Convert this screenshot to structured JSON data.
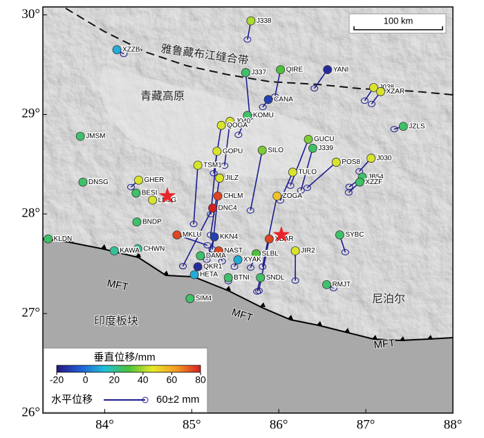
{
  "map": {
    "xlim": [
      83.29,
      88
    ],
    "ylim": [
      26,
      30.08
    ],
    "xticks": [
      {
        "value": 84,
        "label": "84°"
      },
      {
        "value": 85,
        "label": "85°"
      },
      {
        "value": 86,
        "label": "86°"
      },
      {
        "value": 87,
        "label": "87°"
      },
      {
        "value": 88,
        "label": "88°"
      }
    ],
    "yticks": [
      {
        "value": 26,
        "label": "26°"
      },
      {
        "value": 27,
        "label": "27°"
      },
      {
        "value": 28,
        "label": "28°"
      },
      {
        "value": 29,
        "label": "29°"
      },
      {
        "value": 30,
        "label": "30°"
      }
    ],
    "places": {
      "suture": "雅鲁藏布江缝合带",
      "plateau": "青藏高原",
      "nepal": "尼泊尔",
      "india": "印度板块"
    },
    "fault_labels": [
      "MFT",
      "MFT",
      "MFT"
    ],
    "scale_bar": "100 km",
    "colorbar": {
      "title": "垂直位移/mm",
      "vrange": [
        -20,
        80
      ],
      "ticks": [
        -20,
        0,
        20,
        40,
        60,
        80
      ],
      "colormap": [
        "#2a1580",
        "#1f5fd6",
        "#22c0d8",
        "#4cc23a",
        "#e8e82a",
        "#f59a23",
        "#d42020"
      ]
    },
    "vector_legend": {
      "title": "水平位移",
      "label": "60±2 mm",
      "value": 60,
      "color": "#1a1a8c"
    },
    "earthquakes": [
      {
        "lon": 84.72,
        "lat": 28.18
      },
      {
        "lon": 86.03,
        "lat": 27.79
      }
    ],
    "stations": [
      {
        "name": "J338",
        "lon": 85.68,
        "lat": 29.94,
        "vertical": 40,
        "ve": -5,
        "vn": -27
      },
      {
        "name": "XZZB",
        "lon": 84.14,
        "lat": 29.65,
        "vertical": 10,
        "ve": 10,
        "vn": -6
      },
      {
        "name": "QIRE",
        "lon": 86.02,
        "lat": 29.45,
        "vertical": 30,
        "ve": -8,
        "vn": -39
      },
      {
        "name": "YANI",
        "lon": 86.56,
        "lat": 29.45,
        "vertical": -15,
        "ve": -19,
        "vn": -27
      },
      {
        "name": "J337",
        "lon": 85.62,
        "lat": 29.42,
        "vertical": 25,
        "ve": 6,
        "vn": -64
      },
      {
        "name": "J038",
        "lon": 87.09,
        "lat": 29.27,
        "vertical": 45,
        "ve": -13,
        "vn": -19
      },
      {
        "name": "XZAR",
        "lon": 87.17,
        "lat": 29.23,
        "vertical": 45,
        "ve": -13,
        "vn": -18
      },
      {
        "name": "CANA",
        "lon": 85.88,
        "lat": 29.15,
        "vertical": -10,
        "ve": -8,
        "vn": -11
      },
      {
        "name": "KOMU",
        "lon": 85.64,
        "lat": 28.99,
        "vertical": 25,
        "ve": -13,
        "vn": -28
      },
      {
        "name": "J040",
        "lon": 85.44,
        "lat": 28.93,
        "vertical": 45,
        "ve": -8,
        "vn": -64
      },
      {
        "name": "QOGA",
        "lon": 85.34,
        "lat": 28.89,
        "vertical": 45,
        "ve": -11,
        "vn": -69
      },
      {
        "name": "JZLS",
        "lon": 87.43,
        "lat": 28.88,
        "vertical": 25,
        "ve": -13,
        "vn": -4
      },
      {
        "name": "JMSM",
        "lon": 83.72,
        "lat": 28.78,
        "vertical": 25
      },
      {
        "name": "GUCU",
        "lon": 86.34,
        "lat": 28.75,
        "vertical": 35,
        "ve": -26,
        "vn": -67
      },
      {
        "name": "J339",
        "lon": 86.39,
        "lat": 28.66,
        "vertical": 25,
        "ve": -17,
        "vn": -61
      },
      {
        "name": "SILO",
        "lon": 85.81,
        "lat": 28.64,
        "vertical": 35,
        "ve": -17,
        "vn": -87
      },
      {
        "name": "GOPU",
        "lon": 85.29,
        "lat": 28.63,
        "vertical": 45,
        "ve": -9,
        "vn": -91
      },
      {
        "name": "TSM1",
        "lon": 85.07,
        "lat": 28.49,
        "vertical": 45,
        "ve": -6,
        "vn": -85
      },
      {
        "name": "J030",
        "lon": 87.06,
        "lat": 28.56,
        "vertical": 45,
        "ve": -17,
        "vn": -19
      },
      {
        "name": "POS8",
        "lon": 86.66,
        "lat": 28.52,
        "vertical": 45,
        "ve": -42,
        "vn": -37
      },
      {
        "name": "TULO",
        "lon": 86.16,
        "lat": 28.42,
        "vertical": 45,
        "ve": -18,
        "vn": -41
      },
      {
        "name": "JILZ",
        "lon": 85.32,
        "lat": 28.36,
        "vertical": 45,
        "ve": -13,
        "vn": -82
      },
      {
        "name": "JB54",
        "lon": 86.96,
        "lat": 28.37,
        "vertical": 25,
        "ve": -19,
        "vn": -14
      },
      {
        "name": "XZZF",
        "lon": 86.93,
        "lat": 28.32,
        "vertical": 25,
        "ve": -16,
        "vn": -15
      },
      {
        "name": "DNSG",
        "lon": 83.75,
        "lat": 28.32,
        "vertical": 25
      },
      {
        "name": "GHER",
        "lon": 84.39,
        "lat": 28.34,
        "vertical": 45,
        "ve": -11,
        "vn": -10
      },
      {
        "name": "BESI",
        "lon": 84.36,
        "lat": 28.21,
        "vertical": 25
      },
      {
        "name": "CHLM",
        "lon": 85.3,
        "lat": 28.18,
        "vertical": 75,
        "ve": -8,
        "vn": -77
      },
      {
        "name": "ZOGA",
        "lon": 85.98,
        "lat": 28.18,
        "vertical": 55,
        "ve": -21,
        "vn": -102
      },
      {
        "name": "LMJG",
        "lon": 84.55,
        "lat": 28.14,
        "vertical": 45
      },
      {
        "name": "DNC4",
        "lon": 85.24,
        "lat": 28.06,
        "vertical": 80,
        "ve": -43,
        "vn": -84
      },
      {
        "name": "BNDP",
        "lon": 84.37,
        "lat": 27.92,
        "vertical": 25
      },
      {
        "name": "MKLU",
        "lon": 84.83,
        "lat": 27.79,
        "vertical": 75,
        "ve": 44,
        "vn": -15
      },
      {
        "name": "KKN4",
        "lon": 85.26,
        "lat": 27.77,
        "vertical": -10,
        "ve": -11,
        "vn": -33
      },
      {
        "name": "XBAR",
        "lon": 85.89,
        "lat": 27.75,
        "vertical": 75,
        "ve": -15,
        "vn": -75
      },
      {
        "name": "SYBC",
        "lon": 86.7,
        "lat": 27.79,
        "vertical": 25,
        "ve": 8,
        "vn": -25
      },
      {
        "name": "KLDN",
        "lon": 83.35,
        "lat": 27.75,
        "vertical": 25
      },
      {
        "name": "JIR2",
        "lon": 86.19,
        "lat": 27.63,
        "vertical": 45,
        "ve": 0,
        "vn": -43
      },
      {
        "name": "NAST",
        "lon": 85.31,
        "lat": 27.63,
        "vertical": 75,
        "ve": 5,
        "vn": -15
      },
      {
        "name": "CHWN",
        "lon": 84.38,
        "lat": 27.65,
        "vertical": 20
      },
      {
        "name": "KAWA",
        "lon": 84.11,
        "lat": 27.63,
        "vertical": 20
      },
      {
        "name": "SLBL",
        "lon": 85.74,
        "lat": 27.6,
        "vertical": 30,
        "ve": -8,
        "vn": -20
      },
      {
        "name": "XYAK",
        "lon": 85.53,
        "lat": 27.54,
        "vertical": 10,
        "ve": -5,
        "vn": -10
      },
      {
        "name": "DAMA",
        "lon": 85.1,
        "lat": 27.58,
        "vertical": 25
      },
      {
        "name": "QKR1",
        "lon": 85.07,
        "lat": 27.47,
        "vertical": -15
      },
      {
        "name": "HETA",
        "lon": 85.03,
        "lat": 27.39,
        "vertical": 10
      },
      {
        "name": "BTNI",
        "lon": 85.42,
        "lat": 27.36,
        "vertical": 25,
        "ve": 0,
        "vn": -5
      },
      {
        "name": "SNDL",
        "lon": 85.79,
        "lat": 27.36,
        "vertical": 25,
        "ve": -5,
        "vn": -20
      },
      {
        "name": "RMJT",
        "lon": 86.55,
        "lat": 27.29,
        "vertical": 25,
        "ve": 10,
        "vn": -5
      },
      {
        "name": "SIM4",
        "lon": 84.98,
        "lat": 27.15,
        "vertical": 25
      }
    ]
  }
}
